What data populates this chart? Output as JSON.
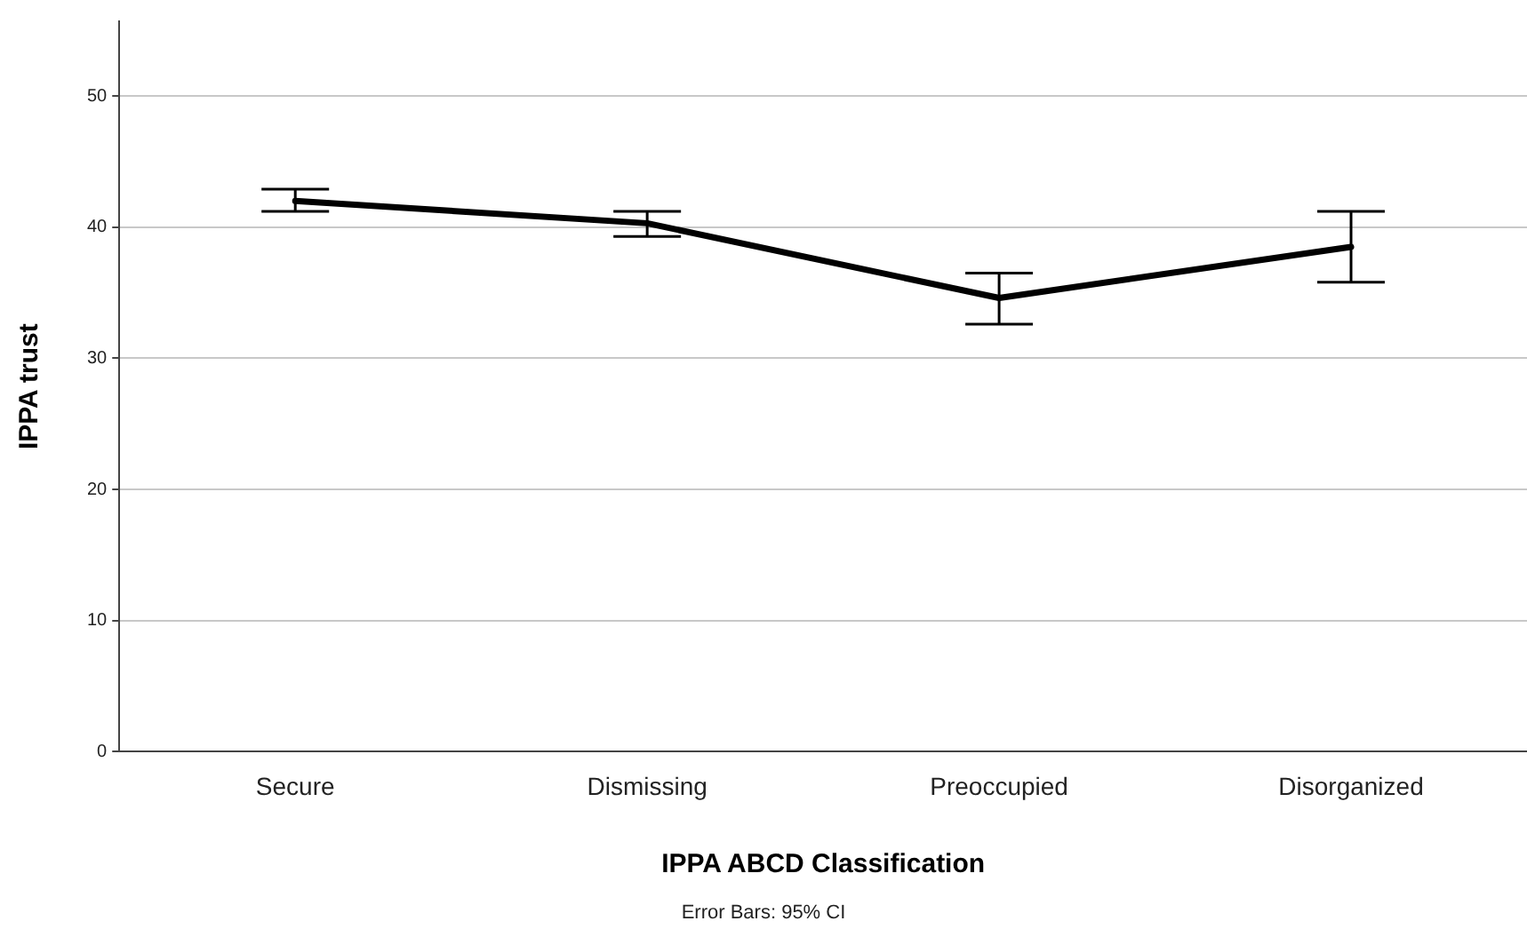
{
  "chart_data": {
    "type": "line",
    "xlabel": "IPPA ABCD Classification",
    "ylabel": "IPPA trust",
    "categories": [
      "Secure",
      "Dismissing",
      "Preoccupied",
      "Disorganized"
    ],
    "series": [
      {
        "color": "#000000",
        "values": [
          42.0,
          40.3,
          34.6,
          38.5
        ],
        "errors": [
          [
            41.2,
            42.9
          ],
          [
            39.3,
            41.2
          ],
          [
            32.6,
            36.5
          ],
          [
            35.8,
            41.2
          ]
        ]
      }
    ],
    "ylim": [
      0,
      55.7
    ],
    "yticks": [
      0,
      10,
      20,
      30,
      40,
      50
    ],
    "grid": "y",
    "legend": false,
    "marker": "none",
    "line_style": "solid",
    "annotations": [
      "Error Bars: 95% CI"
    ]
  }
}
